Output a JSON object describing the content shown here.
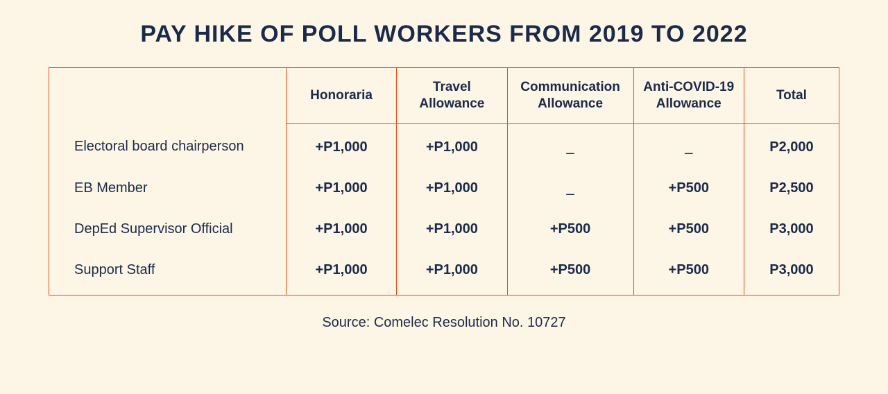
{
  "title": "PAY HIKE OF POLL WORKERS FROM 2019 TO 2022",
  "columns": {
    "honoraria": "Honoraria",
    "travel": "Travel Allowance",
    "communication": "Communication Allowance",
    "anti_covid": "Anti-COVID-19 Allowance",
    "total": "Total"
  },
  "rows": [
    {
      "role": "Electoral board chairperson",
      "honoraria": "+P1,000",
      "travel": "+P1,000",
      "communication": "_",
      "anti_covid": "_",
      "total": "P2,000"
    },
    {
      "role": "EB Member",
      "honoraria": "+P1,000",
      "travel": "+P1,000",
      "communication": "_",
      "anti_covid": "+P500",
      "total": "P2,500"
    },
    {
      "role": "DepEd Supervisor Official",
      "honoraria": "+P1,000",
      "travel": "+P1,000",
      "communication": "+P500",
      "anti_covid": "+P500",
      "total": "P3,000"
    },
    {
      "role": "Support Staff",
      "honoraria": "+P1,000",
      "travel": "+P1,000",
      "communication": "+P500",
      "anti_covid": "+P500",
      "total": "P3,000"
    }
  ],
  "source": "Source: Comelec Resolution No. 10727",
  "colors": {
    "background": "#fdf5e6",
    "text": "#1a2b4a",
    "border": "#e84e1a"
  }
}
